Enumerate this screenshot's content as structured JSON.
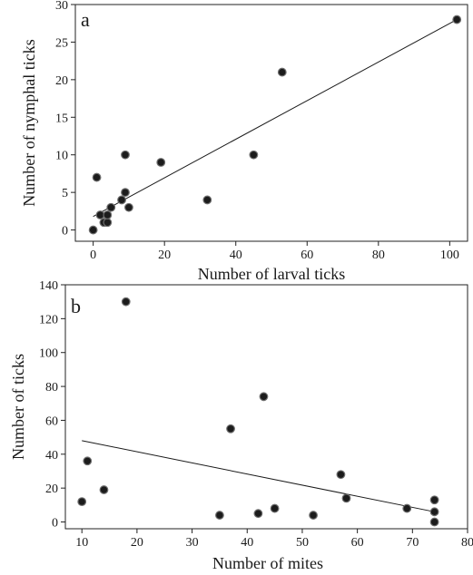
{
  "chart_data": [
    {
      "type": "scatter",
      "panel_label": "a",
      "xlabel": "Number of larval ticks",
      "ylabel": "Number of nymphal ticks",
      "xlim": [
        -5,
        105
      ],
      "ylim": [
        -1.5,
        30
      ],
      "xticks": [
        0,
        20,
        40,
        60,
        80,
        100
      ],
      "yticks": [
        0,
        5,
        10,
        15,
        20,
        25,
        30
      ],
      "grid": false,
      "points": [
        {
          "x": 0,
          "y": 0
        },
        {
          "x": 1,
          "y": 7
        },
        {
          "x": 2,
          "y": 2
        },
        {
          "x": 3,
          "y": 1
        },
        {
          "x": 4,
          "y": 1
        },
        {
          "x": 4,
          "y": 2
        },
        {
          "x": 5,
          "y": 3
        },
        {
          "x": 8,
          "y": 4
        },
        {
          "x": 9,
          "y": 5
        },
        {
          "x": 9,
          "y": 10
        },
        {
          "x": 10,
          "y": 3
        },
        {
          "x": 19,
          "y": 9
        },
        {
          "x": 32,
          "y": 4
        },
        {
          "x": 45,
          "y": 10
        },
        {
          "x": 53,
          "y": 21
        },
        {
          "x": 102,
          "y": 28
        }
      ],
      "fit_line": {
        "x": [
          0,
          102
        ],
        "y": [
          1.8,
          28
        ]
      }
    },
    {
      "type": "scatter",
      "panel_label": "b",
      "xlabel": "Number of mites",
      "ylabel": "Number of ticks",
      "xlim": [
        7,
        80
      ],
      "ylim": [
        -4,
        140
      ],
      "xticks": [
        10,
        20,
        30,
        40,
        50,
        60,
        70,
        80
      ],
      "yticks": [
        0,
        20,
        40,
        60,
        80,
        100,
        120,
        140
      ],
      "grid": false,
      "points": [
        {
          "x": 10,
          "y": 12
        },
        {
          "x": 11,
          "y": 36
        },
        {
          "x": 14,
          "y": 19
        },
        {
          "x": 18,
          "y": 130
        },
        {
          "x": 35,
          "y": 4
        },
        {
          "x": 37,
          "y": 55
        },
        {
          "x": 42,
          "y": 5
        },
        {
          "x": 43,
          "y": 74
        },
        {
          "x": 45,
          "y": 8
        },
        {
          "x": 52,
          "y": 4
        },
        {
          "x": 57,
          "y": 28
        },
        {
          "x": 58,
          "y": 14
        },
        {
          "x": 69,
          "y": 8
        },
        {
          "x": 74,
          "y": 13
        },
        {
          "x": 74,
          "y": 6
        },
        {
          "x": 74,
          "y": 0
        }
      ],
      "fit_line": {
        "x": [
          10,
          74
        ],
        "y": [
          48,
          6
        ]
      }
    }
  ]
}
